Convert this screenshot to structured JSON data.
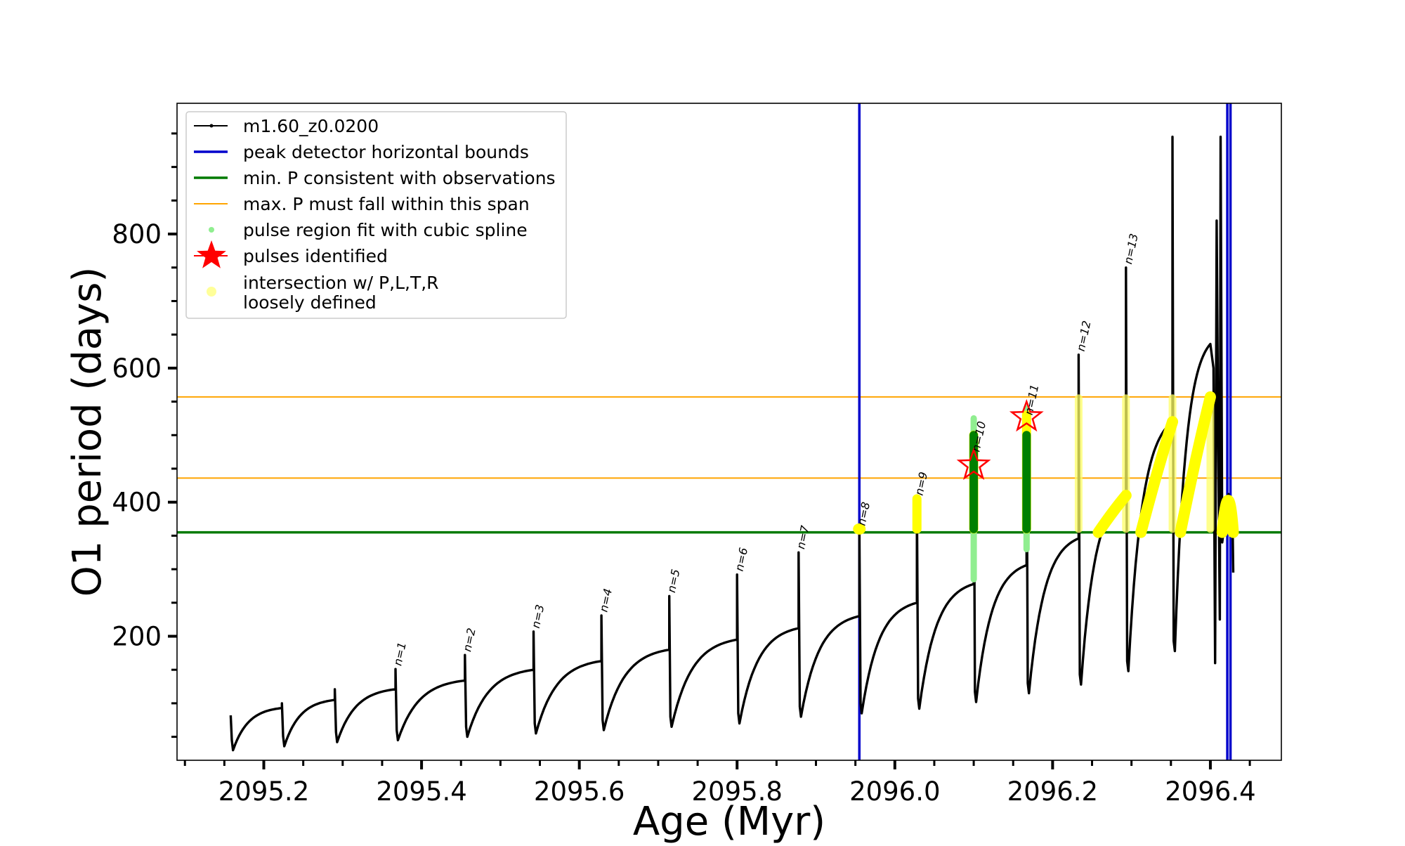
{
  "chart_data": {
    "type": "line",
    "xlabel": "Age (Myr)",
    "ylabel": "O1 period (days)",
    "xlim": [
      2095.09,
      2096.49
    ],
    "ylim": [
      15,
      995
    ],
    "x_ticks": [
      2095.2,
      2095.4,
      2095.6,
      2095.8,
      2096.0,
      2096.2,
      2096.4
    ],
    "x_tick_labels": [
      "2095.2",
      "2095.4",
      "2095.6",
      "2095.8",
      "2096.0",
      "2096.2",
      "2096.4"
    ],
    "y_ticks": [
      200,
      400,
      600,
      800
    ],
    "y_tick_labels": [
      "200",
      "400",
      "600",
      "800"
    ],
    "legend": {
      "placement": "upper-left",
      "entries": [
        {
          "label": "m1.60_z0.0200",
          "marker": "line-dot",
          "color": "#000000"
        },
        {
          "label": "peak detector horizontal bounds",
          "marker": "line",
          "color": "#0000cc"
        },
        {
          "label": "min. P consistent with observations",
          "marker": "line",
          "color": "#007a00"
        },
        {
          "label": "max. P must fall within this span",
          "marker": "line",
          "color": "#ffa500"
        },
        {
          "label": "pulse region fit with cubic spline",
          "marker": "dot",
          "color": "#90ee90"
        },
        {
          "label": "pulses identified",
          "marker": "star",
          "color": "#ff0000"
        },
        {
          "label": "intersection w/ P,L,T,R",
          "label2": "loosely defined",
          "marker": "dot",
          "color": "#ffff99"
        }
      ]
    },
    "series": [
      {
        "name": "m1.60_z0.0200",
        "color": "#000000",
        "style": "sawtooth-with-spikes",
        "cycles": [
          {
            "start": 2095.158,
            "min": 30,
            "end": 2095.223,
            "end_val": 93,
            "spike": 82
          },
          {
            "start": 2095.223,
            "min": 36,
            "end": 2095.29,
            "end_val": 105,
            "spike": 100
          },
          {
            "start": 2095.29,
            "min": 42,
            "end": 2095.367,
            "end_val": 121,
            "spike": 121
          },
          {
            "start": 2095.367,
            "min": 45,
            "end": 2095.455,
            "end_val": 134,
            "spike": 151
          },
          {
            "start": 2095.455,
            "min": 50,
            "end": 2095.542,
            "end_val": 150,
            "spike": 172
          },
          {
            "start": 2095.542,
            "min": 55,
            "end": 2095.628,
            "end_val": 163,
            "spike": 207
          },
          {
            "start": 2095.628,
            "min": 60,
            "end": 2095.714,
            "end_val": 180,
            "spike": 231
          },
          {
            "start": 2095.714,
            "min": 65,
            "end": 2095.8,
            "end_val": 195,
            "spike": 260
          },
          {
            "start": 2095.8,
            "min": 70,
            "end": 2095.878,
            "end_val": 212,
            "spike": 292
          },
          {
            "start": 2095.878,
            "min": 80,
            "end": 2095.955,
            "end_val": 230,
            "spike": 325
          },
          {
            "start": 2095.955,
            "min": 85,
            "end": 2096.028,
            "end_val": 250,
            "spike": 360
          },
          {
            "start": 2096.028,
            "min": 92,
            "end": 2096.1,
            "end_val": 278,
            "spike": 405
          },
          {
            "start": 2096.1,
            "min": 102,
            "end": 2096.167,
            "end_val": 306,
            "spike": 525
          },
          {
            "start": 2096.167,
            "min": 115,
            "end": 2096.233,
            "end_val": 346,
            "spike": 540
          },
          {
            "start": 2096.233,
            "min": 128,
            "end": 2096.293,
            "end_val": 410,
            "spike": 620
          },
          {
            "start": 2096.293,
            "min": 148,
            "end": 2096.352,
            "end_val": 520,
            "spike": 750
          },
          {
            "start": 2096.352,
            "min": 178,
            "end": 2096.4,
            "end_val": 636,
            "spike": 945
          }
        ],
        "tail": [
          {
            "x": 2096.4,
            "y": 636
          },
          {
            "x": 2096.404,
            "y": 600
          },
          {
            "x": 2096.406,
            "y": 160
          },
          {
            "x": 2096.408,
            "y": 820
          },
          {
            "x": 2096.41,
            "y": 480
          },
          {
            "x": 2096.412,
            "y": 225
          },
          {
            "x": 2096.413,
            "y": 945
          },
          {
            "x": 2096.415,
            "y": 340
          },
          {
            "x": 2096.423,
            "y": 412
          },
          {
            "x": 2096.428,
            "y": 380
          },
          {
            "x": 2096.429,
            "y": 295
          }
        ]
      }
    ],
    "pulse_labels": [
      {
        "x": 2095.367,
        "y": 151,
        "label": "n=1"
      },
      {
        "x": 2095.455,
        "y": 172,
        "label": "n=2"
      },
      {
        "x": 2095.542,
        "y": 207,
        "label": "n=3"
      },
      {
        "x": 2095.628,
        "y": 231,
        "label": "n=4"
      },
      {
        "x": 2095.714,
        "y": 260,
        "label": "n=5"
      },
      {
        "x": 2095.8,
        "y": 292,
        "label": "n=6"
      },
      {
        "x": 2095.878,
        "y": 325,
        "label": "n=7"
      },
      {
        "x": 2095.955,
        "y": 360,
        "label": "n=8"
      },
      {
        "x": 2096.028,
        "y": 405,
        "label": "n=9"
      },
      {
        "x": 2096.1,
        "y": 470,
        "label": "n=10"
      },
      {
        "x": 2096.167,
        "y": 525,
        "label": "n=11"
      },
      {
        "x": 2096.233,
        "y": 620,
        "label": "n=12"
      },
      {
        "x": 2096.293,
        "y": 750,
        "label": "n=13"
      }
    ],
    "horizontal_lines": [
      {
        "y": 355,
        "color": "#007a00",
        "role": "min. P consistent with observations"
      },
      {
        "y": 436,
        "color": "#ffa500",
        "role": "max. P lower bound"
      },
      {
        "y": 557,
        "color": "#ffa500",
        "role": "max. P upper bound"
      }
    ],
    "vertical_lines": [
      {
        "x": 2095.955,
        "color": "#0000cc",
        "role": "peak detector lower bound"
      },
      {
        "x": 2096.4255,
        "color": "#0000cc",
        "role": "peak detector upper bound"
      },
      {
        "x": 2096.4215,
        "color": "#0000cc",
        "role": "peak detector upper bound"
      }
    ],
    "spline_regions": [
      {
        "x": 2096.1,
        "y_range": [
          285,
          525
        ],
        "fit_range": [
          360,
          500
        ]
      },
      {
        "x": 2096.167,
        "y_range": [
          330,
          540
        ],
        "fit_range": [
          360,
          500
        ]
      }
    ],
    "pulses_identified": [
      {
        "x": 2096.1,
        "y": 455
      },
      {
        "x": 2096.167,
        "y": 527
      }
    ],
    "intersection_regions": [
      {
        "kind": "blob",
        "x": 2095.955,
        "y": [
          355,
          365
        ]
      },
      {
        "kind": "vertical",
        "x": 2096.028,
        "y": [
          360,
          405
        ]
      },
      {
        "kind": "vertical",
        "x": 2096.1,
        "y": [
          360,
          500
        ]
      },
      {
        "kind": "vertical",
        "x": 2096.167,
        "y": [
          360,
          530
        ]
      },
      {
        "kind": "vertical",
        "x": 2096.233,
        "y": [
          360,
          555
        ]
      },
      {
        "kind": "vertical",
        "x": 2096.293,
        "y": [
          360,
          555
        ]
      },
      {
        "kind": "vertical",
        "x": 2096.352,
        "y": [
          360,
          555
        ]
      },
      {
        "kind": "vertical",
        "x": 2096.4,
        "y": [
          360,
          555
        ]
      },
      {
        "kind": "rise",
        "from": {
          "x": 2096.258,
          "y": 355
        },
        "to": {
          "x": 2096.293,
          "y": 410
        }
      },
      {
        "kind": "rise",
        "from": {
          "x": 2096.312,
          "y": 355
        },
        "to": {
          "x": 2096.352,
          "y": 520
        }
      },
      {
        "kind": "rise",
        "from": {
          "x": 2096.362,
          "y": 355
        },
        "to": {
          "x": 2096.4,
          "y": 557
        }
      },
      {
        "kind": "hump",
        "from": {
          "x": 2096.415,
          "y": 355
        },
        "peak": {
          "x": 2096.423,
          "y": 410
        },
        "to": {
          "x": 2096.429,
          "y": 355
        }
      }
    ]
  }
}
